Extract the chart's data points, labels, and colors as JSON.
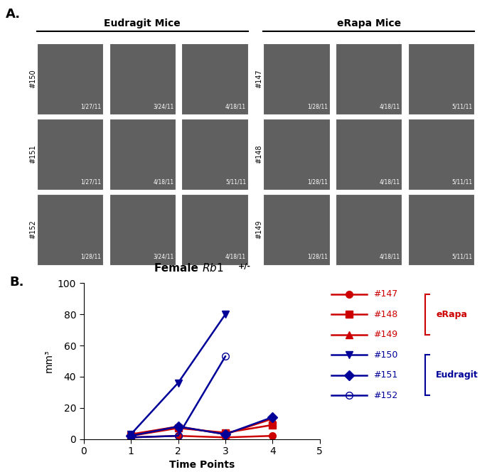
{
  "xlabel": "Time Points",
  "ylabel": "mm³",
  "xlim": [
    0,
    5
  ],
  "ylim": [
    0,
    100
  ],
  "xticks": [
    0,
    1,
    2,
    3,
    4,
    5
  ],
  "yticks": [
    0,
    20,
    40,
    60,
    80,
    100
  ],
  "series": [
    {
      "label": "#147",
      "group": "eRapa",
      "color": "#CC0000",
      "marker": "o",
      "marker_filled": true,
      "x": [
        1,
        2,
        3,
        4
      ],
      "y": [
        1,
        2,
        1,
        2
      ]
    },
    {
      "label": "#148",
      "group": "eRapa",
      "color": "#CC0000",
      "marker": "s",
      "marker_filled": true,
      "x": [
        1,
        2,
        3,
        4
      ],
      "y": [
        2,
        7,
        4,
        9
      ]
    },
    {
      "label": "#149",
      "group": "eRapa",
      "color": "#CC0000",
      "marker": "^",
      "marker_filled": true,
      "x": [
        1,
        2,
        3,
        4
      ],
      "y": [
        3,
        8,
        3,
        13
      ]
    },
    {
      "label": "#150",
      "group": "Eudragit",
      "color": "#000099",
      "marker": "v",
      "marker_filled": true,
      "x": [
        1,
        2,
        3
      ],
      "y": [
        3,
        36,
        80
      ]
    },
    {
      "label": "#151",
      "group": "Eudragit",
      "color": "#000099",
      "marker": "D",
      "marker_filled": true,
      "x": [
        1,
        2,
        3,
        4
      ],
      "y": [
        2,
        8,
        3,
        14
      ]
    },
    {
      "label": "#152",
      "group": "Eudragit",
      "color": "#000099",
      "marker": "o",
      "marker_filled": false,
      "x": [
        1,
        2,
        3
      ],
      "y": [
        1,
        2,
        53
      ]
    }
  ],
  "panel_a_label": "A.",
  "panel_b_label": "B.",
  "erapa_color": "#CC0000",
  "eudragit_color": "#000099",
  "background_color": "#ffffff",
  "eudragit_mice_label": "Eudragit Mice",
  "erapa_mice_label": "eRapa Mice",
  "left_row_labels": [
    "#150",
    "#151",
    "#152"
  ],
  "right_row_labels": [
    "#147",
    "#148",
    "#149"
  ],
  "left_dates": [
    [
      "1/27/11",
      "3/24/11",
      "4/18/11"
    ],
    [
      "1/27/11",
      "4/18/11",
      "5/11/11"
    ],
    [
      "1/28/11",
      "3/24/11",
      "4/18/11"
    ]
  ],
  "right_dates": [
    [
      "1/28/11",
      "4/18/11",
      "5/11/11"
    ],
    [
      "1/28/11",
      "4/18/11",
      "5/11/11"
    ],
    [
      "1/28/11",
      "4/18/11",
      "5/11/11"
    ]
  ]
}
